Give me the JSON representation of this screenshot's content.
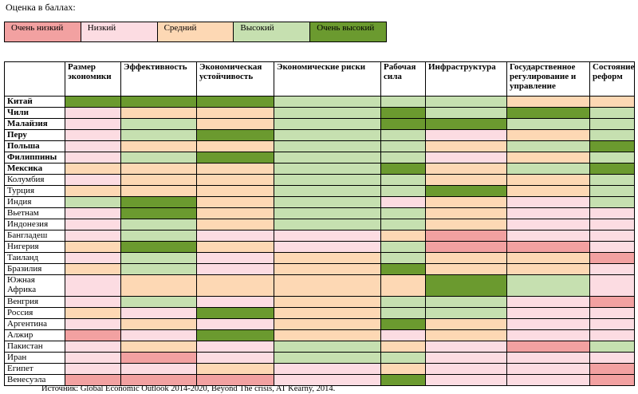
{
  "legend": {
    "title": "Оценка в баллах:",
    "items": [
      {
        "key": "vl",
        "label": "Очень низкий",
        "color": "#f2a1a1"
      },
      {
        "key": "l",
        "label": "Низкий",
        "color": "#fcdce2"
      },
      {
        "key": "m",
        "label": "Средний",
        "color": "#fdd8b4"
      },
      {
        "key": "h",
        "label": "Высокий",
        "color": "#c6e0b0"
      },
      {
        "key": "vh",
        "label": "Очень высокий",
        "color": "#6b9a2f"
      }
    ]
  },
  "table": {
    "headers": [
      "",
      "Размер экономики",
      "Эффективность",
      "Экономическая устойчивость",
      "Экономические риски",
      "Рабочая сила",
      "Инфраструктура",
      "Государственное регулирование и управление",
      "Состояние реформ"
    ],
    "rows": [
      {
        "country": "Китай",
        "bold": true,
        "ratings": [
          "vh",
          "vh",
          "vh",
          "h",
          "h",
          "h",
          "m",
          "m"
        ]
      },
      {
        "country": "Чили",
        "bold": true,
        "ratings": [
          "l",
          "m",
          "m",
          "h",
          "vh",
          "h",
          "vh",
          "h"
        ]
      },
      {
        "country": "Малайзия",
        "bold": true,
        "ratings": [
          "l",
          "h",
          "m",
          "h",
          "vh",
          "vh",
          "h",
          "h"
        ]
      },
      {
        "country": "Перу",
        "bold": true,
        "ratings": [
          "l",
          "h",
          "vh",
          "h",
          "h",
          "l",
          "m",
          "h"
        ]
      },
      {
        "country": "Польша",
        "bold": true,
        "ratings": [
          "l",
          "m",
          "m",
          "h",
          "h",
          "m",
          "h",
          "vh"
        ]
      },
      {
        "country": "Филиппины",
        "bold": true,
        "ratings": [
          "l",
          "h",
          "vh",
          "h",
          "h",
          "l",
          "m",
          "h"
        ]
      },
      {
        "country": "Мексика",
        "bold": true,
        "ratings": [
          "m",
          "m",
          "m",
          "h",
          "vh",
          "m",
          "h",
          "vh"
        ]
      },
      {
        "country": "Колумбия",
        "bold": false,
        "ratings": [
          "l",
          "m",
          "m",
          "h",
          "h",
          "m",
          "m",
          "h"
        ]
      },
      {
        "country": "Турция",
        "bold": false,
        "ratings": [
          "m",
          "m",
          "m",
          "h",
          "h",
          "vh",
          "m",
          "h"
        ]
      },
      {
        "country": "Индия",
        "bold": false,
        "ratings": [
          "h",
          "vh",
          "m",
          "h",
          "l",
          "m",
          "l",
          "h"
        ]
      },
      {
        "country": "Вьетнам",
        "bold": false,
        "ratings": [
          "l",
          "vh",
          "m",
          "h",
          "h",
          "m",
          "l",
          "l"
        ]
      },
      {
        "country": "Индонезия",
        "bold": false,
        "ratings": [
          "l",
          "h",
          "m",
          "h",
          "h",
          "m",
          "l",
          "l"
        ]
      },
      {
        "country": "Бангладеш",
        "bold": false,
        "ratings": [
          "l",
          "h",
          "l",
          "l",
          "m",
          "vl",
          "l",
          "l"
        ]
      },
      {
        "country": "Нигерия",
        "bold": false,
        "ratings": [
          "m",
          "vh",
          "m",
          "l",
          "h",
          "vl",
          "vl",
          "l"
        ]
      },
      {
        "country": "Таиланд",
        "bold": false,
        "ratings": [
          "l",
          "h",
          "l",
          "m",
          "h",
          "m",
          "m",
          "vl"
        ]
      },
      {
        "country": "Бразилия",
        "bold": false,
        "ratings": [
          "m",
          "h",
          "l",
          "m",
          "vh",
          "m",
          "m",
          "l"
        ]
      },
      {
        "country": "Южная Африка",
        "bold": false,
        "ratings": [
          "l",
          "m",
          "m",
          "m",
          "m",
          "vh",
          "h",
          "l"
        ]
      },
      {
        "country": "Венгрия",
        "bold": false,
        "ratings": [
          "l",
          "h",
          "l",
          "m",
          "h",
          "h",
          "l",
          "vl"
        ]
      },
      {
        "country": "Россия",
        "bold": false,
        "ratings": [
          "m",
          "l",
          "vh",
          "m",
          "h",
          "h",
          "l",
          "l"
        ]
      },
      {
        "country": "Аргентина",
        "bold": false,
        "ratings": [
          "l",
          "m",
          "l",
          "m",
          "vh",
          "m",
          "l",
          "l"
        ]
      },
      {
        "country": "Алжир",
        "bold": false,
        "ratings": [
          "vl",
          "l",
          "vh",
          "m",
          "l",
          "m",
          "l",
          "l"
        ]
      },
      {
        "country": "Пакистан",
        "bold": false,
        "ratings": [
          "l",
          "m",
          "l",
          "h",
          "m",
          "l",
          "vl",
          "h"
        ]
      },
      {
        "country": "Иран",
        "bold": false,
        "ratings": [
          "l",
          "vl",
          "l",
          "h",
          "h",
          "l",
          "l",
          "l"
        ]
      },
      {
        "country": "Египет",
        "bold": false,
        "ratings": [
          "l",
          "l",
          "m",
          "l",
          "m",
          "l",
          "l",
          "vl"
        ]
      },
      {
        "country": "Венесуэла",
        "bold": false,
        "ratings": [
          "vl",
          "vl",
          "vl",
          "l",
          "vh",
          "l",
          "l",
          "vl"
        ]
      }
    ]
  },
  "source": "Источник: Global Economic Outlook 2014-2020, Beyond The crisis, AT Kearny, 2014."
}
